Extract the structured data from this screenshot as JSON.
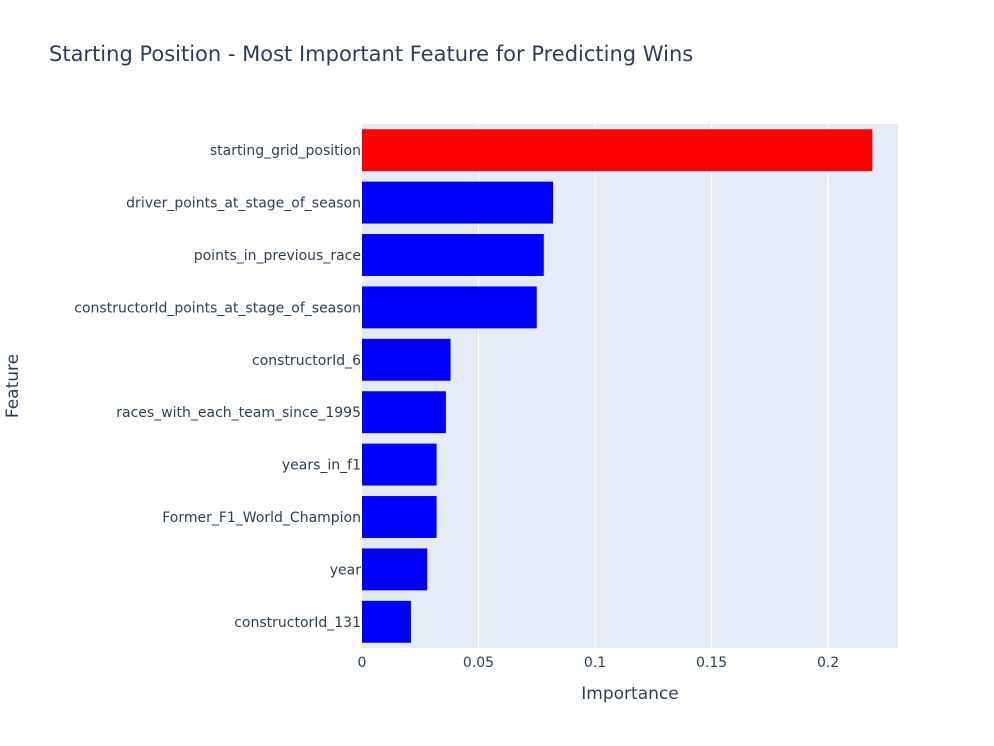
{
  "chart_data": {
    "type": "bar",
    "orientation": "horizontal",
    "title": "Starting Position - Most Important Feature for Predicting Wins",
    "xlabel": "Importance",
    "ylabel": "Feature",
    "xlim": [
      0,
      0.23
    ],
    "xticks": [
      0,
      0.05,
      0.1,
      0.15,
      0.2
    ],
    "xtick_labels": [
      "0",
      "0.05",
      "0.1",
      "0.15",
      "0.2"
    ],
    "grid": true,
    "categories": [
      "starting_grid_position",
      "driver_points_at_stage_of_season",
      "points_in_previous_race",
      "constructorId_points_at_stage_of_season",
      "constructorId_6",
      "races_with_each_team_since_1995",
      "years_in_f1",
      "Former_F1_World_Champion",
      "year",
      "constructorId_131"
    ],
    "values": [
      0.219,
      0.082,
      0.078,
      0.075,
      0.038,
      0.036,
      0.032,
      0.032,
      0.028,
      0.021
    ],
    "colors": [
      "#ff0000",
      "#0000ff",
      "#0000ff",
      "#0000ff",
      "#0000ff",
      "#0000ff",
      "#0000ff",
      "#0000ff",
      "#0000ff",
      "#0000ff"
    ],
    "plot_background": "#e5ecf6",
    "text_color": "#2a3f5f"
  }
}
